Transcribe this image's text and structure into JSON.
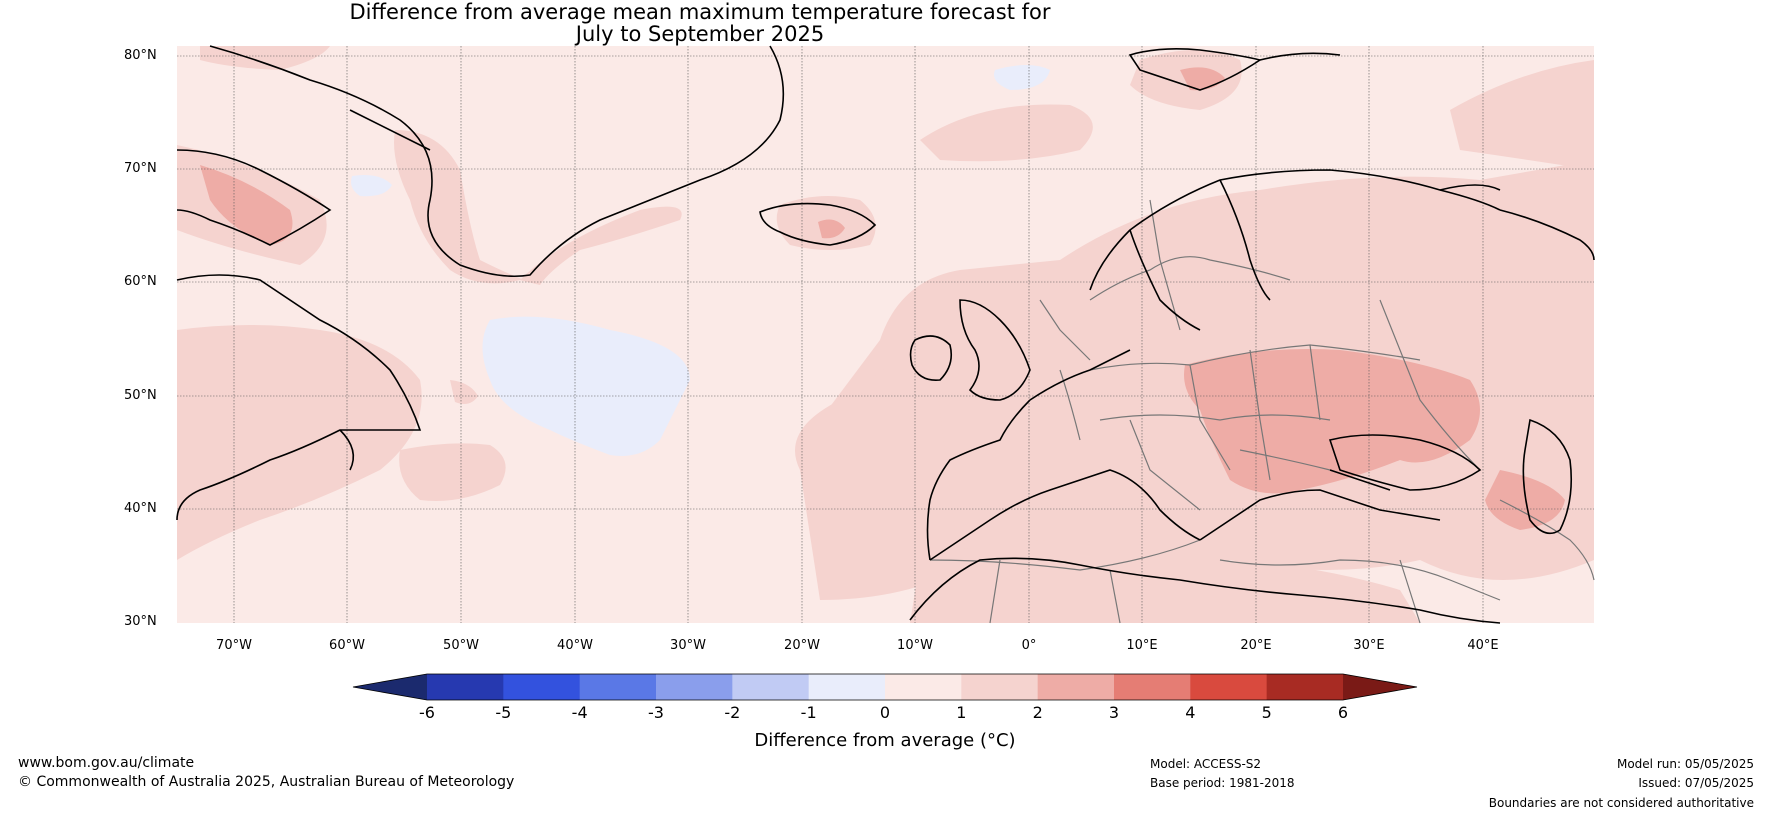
{
  "title": {
    "line1": "Difference from average mean maximum temperature forecast for",
    "line2": "July to September 2025"
  },
  "map": {
    "lat_labels": [
      "80°N",
      "70°N",
      "60°N",
      "50°N",
      "40°N",
      "30°N"
    ],
    "lon_labels": [
      "70°W",
      "60°W",
      "50°W",
      "40°W",
      "30°W",
      "20°W",
      "10°W",
      "0°",
      "10°E",
      "20°E",
      "30°E",
      "40°E"
    ],
    "background_color": "#fbeae7"
  },
  "colorbar": {
    "title": "Difference from average (°C)",
    "tick_labels": [
      "-6",
      "-5",
      "-4",
      "-3",
      "-2",
      "-1",
      "0",
      "1",
      "2",
      "3",
      "4",
      "5",
      "6"
    ],
    "below_color": "#1b2a6e",
    "above_color": "#7a1a16",
    "colors": [
      "#2639b0",
      "#3352de",
      "#5a78e6",
      "#8a9eec",
      "#c1cbf4",
      "#e9edfb",
      "#fbeae7",
      "#f5d3cf",
      "#eeaca6",
      "#e57d74",
      "#d94a3e",
      "#a82b23"
    ]
  },
  "footer": {
    "website": "www.bom.gov.au/climate",
    "copyright": "© Commonwealth of Australia 2025, Australian Bureau of Meteorology",
    "model": "Model: ACCESS-S2",
    "base_period": "Base period: 1981-2018",
    "model_run": "Model run: 05/05/2025",
    "issued": "Issued: 07/05/2025",
    "disclaimer": "Boundaries are not considered authoritative"
  }
}
